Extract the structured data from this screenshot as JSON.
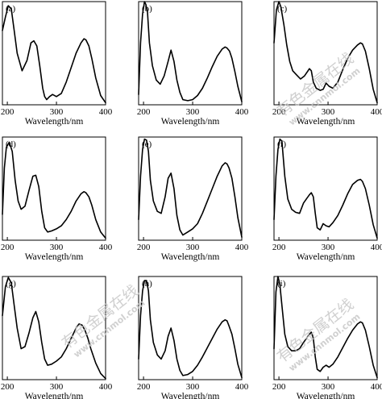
{
  "chart_data": [
    {
      "label": "(a)",
      "type": "line",
      "xlabel": "Wavelength/nm",
      "xticks": [
        "200",
        "300",
        "400"
      ],
      "xlim": [
        190,
        400
      ],
      "ylim": [
        0,
        1
      ],
      "x": [
        190,
        196,
        202,
        208,
        214,
        220,
        230,
        240,
        248,
        254,
        260,
        266,
        272,
        276,
        280,
        286,
        292,
        300,
        310,
        320,
        330,
        340,
        350,
        356,
        360,
        366,
        372,
        380,
        390,
        400
      ],
      "y": [
        0.72,
        0.85,
        0.96,
        0.93,
        0.72,
        0.5,
        0.33,
        0.43,
        0.6,
        0.62,
        0.57,
        0.38,
        0.16,
        0.08,
        0.05,
        0.08,
        0.1,
        0.08,
        0.11,
        0.22,
        0.36,
        0.5,
        0.6,
        0.64,
        0.63,
        0.57,
        0.45,
        0.26,
        0.09,
        0.02
      ]
    },
    {
      "label": "(b)",
      "type": "line",
      "xlabel": "Wavelength/nm",
      "xticks": [
        "200",
        "300",
        "400"
      ],
      "xlim": [
        190,
        400
      ],
      "ylim": [
        0,
        1
      ],
      "x": [
        190,
        194,
        198,
        202,
        205,
        208,
        212,
        218,
        226,
        234,
        242,
        250,
        256,
        262,
        268,
        274,
        280,
        290,
        300,
        310,
        320,
        330,
        340,
        350,
        360,
        366,
        370,
        375,
        380,
        386,
        392,
        400
      ],
      "y": [
        0.1,
        0.6,
        0.88,
        1.0,
        0.97,
        0.9,
        0.6,
        0.38,
        0.24,
        0.2,
        0.28,
        0.42,
        0.53,
        0.42,
        0.24,
        0.12,
        0.05,
        0.04,
        0.05,
        0.09,
        0.16,
        0.26,
        0.37,
        0.47,
        0.54,
        0.56,
        0.55,
        0.52,
        0.45,
        0.32,
        0.18,
        0.03
      ]
    },
    {
      "label": "(c)",
      "type": "line",
      "xlabel": "Wavelength/nm",
      "xticks": [
        "200",
        "300",
        "400"
      ],
      "xlim": [
        190,
        400
      ],
      "ylim": [
        0,
        1
      ],
      "x": [
        190,
        195,
        200,
        204,
        210,
        216,
        222,
        228,
        236,
        244,
        252,
        258,
        262,
        266,
        270,
        276,
        284,
        290,
        296,
        302,
        310,
        320,
        330,
        340,
        350,
        360,
        366,
        370,
        376,
        384,
        392,
        400
      ],
      "y": [
        0.6,
        0.92,
        1.0,
        0.95,
        0.78,
        0.58,
        0.42,
        0.33,
        0.29,
        0.25,
        0.28,
        0.32,
        0.35,
        0.33,
        0.22,
        0.16,
        0.14,
        0.15,
        0.21,
        0.18,
        0.16,
        0.22,
        0.34,
        0.45,
        0.53,
        0.58,
        0.6,
        0.59,
        0.52,
        0.35,
        0.15,
        0.02
      ]
    },
    {
      "label": "(d)",
      "type": "line",
      "xlabel": "Wavelength/nm",
      "xticks": [
        "200",
        "300",
        "400"
      ],
      "xlim": [
        190,
        400
      ],
      "ylim": [
        0,
        1
      ],
      "x": [
        190,
        194,
        198,
        204,
        210,
        216,
        222,
        228,
        236,
        244,
        252,
        258,
        264,
        270,
        276,
        282,
        290,
        300,
        310,
        320,
        330,
        340,
        350,
        356,
        360,
        366,
        372,
        380,
        390,
        400
      ],
      "y": [
        0.25,
        0.7,
        0.9,
        0.95,
        0.86,
        0.58,
        0.38,
        0.3,
        0.33,
        0.48,
        0.62,
        0.63,
        0.52,
        0.28,
        0.12,
        0.08,
        0.09,
        0.11,
        0.14,
        0.2,
        0.28,
        0.38,
        0.45,
        0.47,
        0.46,
        0.42,
        0.34,
        0.2,
        0.08,
        0.02
      ]
    },
    {
      "label": "(e)",
      "type": "line",
      "xlabel": "Wavelength/nm",
      "xticks": [
        "200",
        "300",
        "400"
      ],
      "xlim": [
        190,
        400
      ],
      "ylim": [
        0,
        1
      ],
      "x": [
        190,
        194,
        198,
        202,
        206,
        210,
        214,
        220,
        228,
        236,
        244,
        250,
        256,
        262,
        268,
        274,
        280,
        290,
        300,
        310,
        320,
        330,
        340,
        350,
        360,
        366,
        370,
        374,
        380,
        386,
        392,
        400
      ],
      "y": [
        0.2,
        0.62,
        0.88,
        0.98,
        0.97,
        0.86,
        0.58,
        0.38,
        0.28,
        0.26,
        0.42,
        0.6,
        0.65,
        0.5,
        0.24,
        0.1,
        0.05,
        0.08,
        0.11,
        0.16,
        0.26,
        0.38,
        0.5,
        0.62,
        0.72,
        0.75,
        0.74,
        0.7,
        0.6,
        0.42,
        0.22,
        0.03
      ]
    },
    {
      "label": "(f)",
      "type": "line",
      "xlabel": "Wavelength/nm",
      "xticks": [
        "200",
        "300",
        "400"
      ],
      "xlim": [
        190,
        400
      ],
      "ylim": [
        0,
        1
      ],
      "x": [
        190,
        194,
        198,
        202,
        206,
        212,
        218,
        226,
        234,
        242,
        250,
        256,
        262,
        266,
        270,
        274,
        278,
        284,
        290,
        296,
        302,
        310,
        320,
        330,
        340,
        350,
        360,
        366,
        370,
        376,
        384,
        392,
        400
      ],
      "y": [
        0.2,
        0.62,
        0.88,
        0.98,
        0.96,
        0.62,
        0.4,
        0.3,
        0.27,
        0.26,
        0.36,
        0.4,
        0.44,
        0.46,
        0.42,
        0.26,
        0.12,
        0.1,
        0.16,
        0.14,
        0.13,
        0.17,
        0.24,
        0.34,
        0.45,
        0.54,
        0.58,
        0.59,
        0.57,
        0.5,
        0.34,
        0.15,
        0.02
      ]
    },
    {
      "label": "(g)",
      "type": "line",
      "xlabel": "Wavelength/nm",
      "xticks": [
        "200",
        "300",
        "400"
      ],
      "xlim": [
        190,
        400
      ],
      "ylim": [
        0,
        1
      ],
      "x": [
        190,
        196,
        202,
        208,
        214,
        220,
        228,
        236,
        244,
        252,
        258,
        264,
        270,
        276,
        282,
        290,
        300,
        310,
        320,
        330,
        340,
        346,
        352,
        358,
        364,
        370,
        380,
        390,
        400
      ],
      "y": [
        0.62,
        0.9,
        0.99,
        0.94,
        0.72,
        0.5,
        0.3,
        0.32,
        0.45,
        0.6,
        0.66,
        0.56,
        0.36,
        0.2,
        0.14,
        0.15,
        0.18,
        0.22,
        0.3,
        0.4,
        0.5,
        0.54,
        0.53,
        0.48,
        0.4,
        0.3,
        0.16,
        0.06,
        0.01
      ]
    },
    {
      "label": "(h)",
      "type": "line",
      "xlabel": "Wavelength/nm",
      "xticks": [
        "200",
        "300",
        "400"
      ],
      "xlim": [
        190,
        400
      ],
      "ylim": [
        0,
        1
      ],
      "x": [
        190,
        194,
        198,
        202,
        206,
        210,
        214,
        220,
        228,
        236,
        244,
        250,
        256,
        262,
        268,
        274,
        280,
        290,
        300,
        310,
        320,
        330,
        340,
        350,
        360,
        366,
        370,
        374,
        380,
        386,
        392,
        400
      ],
      "y": [
        0.2,
        0.62,
        0.86,
        0.96,
        0.96,
        0.86,
        0.58,
        0.36,
        0.24,
        0.2,
        0.28,
        0.42,
        0.5,
        0.38,
        0.2,
        0.09,
        0.04,
        0.05,
        0.08,
        0.14,
        0.22,
        0.31,
        0.4,
        0.49,
        0.56,
        0.58,
        0.57,
        0.52,
        0.44,
        0.3,
        0.15,
        0.02
      ]
    },
    {
      "label": "(i)",
      "type": "line",
      "xlabel": "Wavelength/nm",
      "xticks": [
        "200",
        "300",
        "400"
      ],
      "xlim": [
        190,
        400
      ],
      "ylim": [
        0,
        1
      ],
      "x": [
        190,
        194,
        198,
        202,
        206,
        212,
        218,
        226,
        234,
        242,
        250,
        256,
        262,
        266,
        270,
        274,
        278,
        284,
        290,
        296,
        302,
        310,
        320,
        330,
        340,
        350,
        360,
        366,
        370,
        376,
        384,
        392,
        400
      ],
      "y": [
        0.3,
        0.85,
        1.0,
        0.92,
        0.72,
        0.44,
        0.32,
        0.28,
        0.28,
        0.3,
        0.36,
        0.4,
        0.44,
        0.46,
        0.4,
        0.22,
        0.1,
        0.08,
        0.12,
        0.14,
        0.12,
        0.15,
        0.22,
        0.31,
        0.4,
        0.48,
        0.54,
        0.56,
        0.55,
        0.48,
        0.32,
        0.14,
        0.02
      ]
    }
  ],
  "watermark": {
    "line1": "有色金属在线",
    "line2": "www.cnnmol.com",
    "color": "#c8c8c8"
  }
}
